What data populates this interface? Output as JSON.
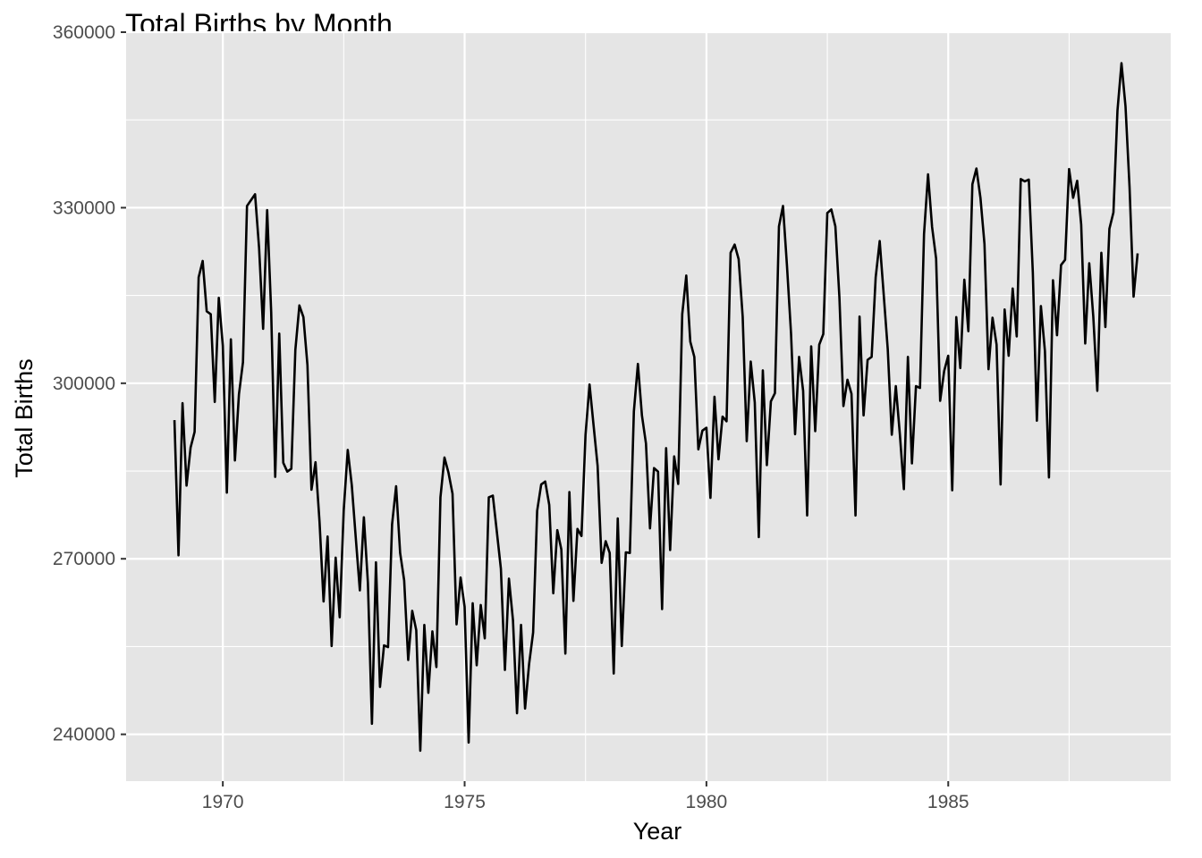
{
  "chart_data": {
    "type": "line",
    "title": "Total Births by Month",
    "xlabel": "Year",
    "ylabel": "Total Births",
    "xlim": [
      1968.0,
      1989.6
    ],
    "ylim": [
      232000,
      360000
    ],
    "grid": true,
    "legend": "none",
    "x_ticks": [
      1970,
      1975,
      1980,
      1985
    ],
    "y_ticks": [
      240000,
      270000,
      300000,
      330000,
      360000
    ],
    "x_tick_labels": [
      "1970",
      "1975",
      "1980",
      "1985"
    ],
    "y_tick_labels": [
      "240000",
      "270000",
      "300000",
      "330000",
      "360000"
    ],
    "colors": {
      "panel": "#e5e5e5",
      "grid": "#ffffff",
      "line": "#000000",
      "tick": "#333333"
    },
    "series": [
      {
        "x_start": 1969.0,
        "x_step": 0.08333,
        "values": [
          293700,
          270600,
          296600,
          282500,
          289000,
          291700,
          318100,
          320900,
          312300,
          311800,
          296800,
          314600,
          306400,
          281300,
          307500,
          286800,
          298100,
          303600,
          330300,
          331300,
          332300,
          323100,
          309300,
          329600,
          312200,
          284000,
          308500,
          286400,
          284900,
          285400,
          305700,
          313300,
          311300,
          303100,
          281800,
          286500,
          276300,
          262700,
          273800,
          255100,
          270200,
          260000,
          278300,
          288600,
          282600,
          273500,
          264600,
          277100,
          265900,
          241800,
          269400,
          248100,
          255200,
          254900,
          275900,
          282400,
          271000,
          266300,
          252700,
          261100,
          257800,
          237200,
          258700,
          247100,
          257600,
          251500,
          280500,
          287300,
          284700,
          281100,
          258800,
          266800,
          261800,
          238600,
          262400,
          251800,
          262100,
          256400,
          280500,
          280800,
          274600,
          268300,
          251000,
          266600,
          259500,
          243600,
          258700,
          244400,
          252000,
          257400,
          278200,
          282700,
          283200,
          279200,
          264100,
          274900,
          271600,
          253800,
          281400,
          262800,
          275100,
          273900,
          291200,
          299800,
          292800,
          285900,
          269300,
          273000,
          271000,
          250400,
          276900,
          255100,
          271100,
          271000,
          295200,
          303300,
          294500,
          289700,
          275200,
          285500,
          284900,
          261400,
          288900,
          271500,
          287500,
          282800,
          311800,
          318400,
          307100,
          304500,
          288700,
          291900,
          292400,
          280400,
          297700,
          287000,
          294300,
          293500,
          322300,
          323700,
          321200,
          311400,
          290100,
          303700,
          296700,
          273700,
          302200,
          286000,
          296900,
          298300,
          326800,
          330300,
          320000,
          308500,
          291300,
          304500,
          298700,
          277400,
          306300,
          291800,
          306600,
          308400,
          329100,
          329700,
          326800,
          314700,
          296100,
          300600,
          298200,
          277400,
          311400,
          294500,
          304000,
          304500,
          318100,
          324300,
          315100,
          305800,
          291200,
          299500,
          291300,
          281900,
          304500,
          286300,
          299500,
          299200,
          325500,
          335700,
          326700,
          321300,
          297000,
          302100,
          304700,
          281700,
          311300,
          302600,
          317700,
          308900,
          334000,
          336700,
          331700,
          323800,
          302400,
          311200,
          306600,
          282700,
          312600,
          304700,
          316200,
          308000,
          334900,
          334500,
          334800,
          318900,
          293600,
          313200,
          305500,
          283900,
          317600,
          308200,
          320200,
          321100,
          336600,
          331700,
          334600,
          327100,
          306800,
          320500,
          311400,
          298700,
          322300,
          309600,
          326400,
          329200,
          346600,
          354700,
          347300,
          333500,
          314800,
          322200
        ]
      }
    ]
  }
}
